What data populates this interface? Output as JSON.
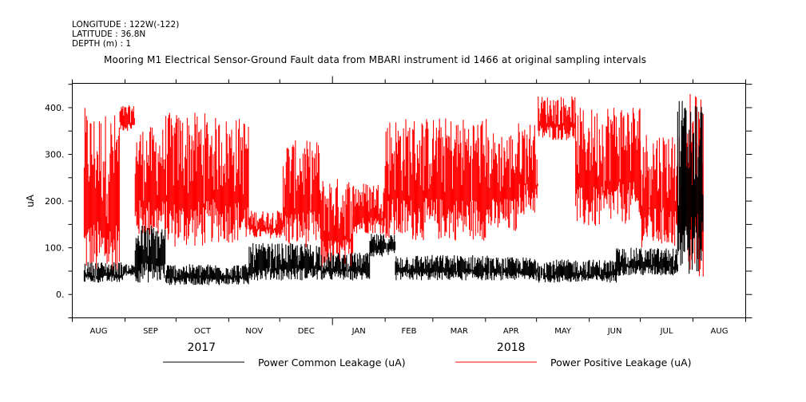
{
  "header": {
    "longitude": "LONGITUDE : 122W(-122)",
    "latitude": "LATITUDE : 36.8N",
    "depth": "DEPTH (m) : 1"
  },
  "chart_data": {
    "type": "line",
    "title": "Mooring M1 Electrical Sensor-Ground Fault data from MBARI instrument id 1466 at original sampling intervals",
    "xlabel": "",
    "ylabel": "uA",
    "ylim": [
      -50,
      452
    ],
    "yticks": [
      0,
      100,
      200,
      300,
      400
    ],
    "ytick_labels": [
      "0.",
      "100.",
      "200.",
      "300.",
      "400."
    ],
    "x_unit": "days since 2017-08-01",
    "xlim": [
      0,
      396
    ],
    "month_boundaries": [
      0,
      31,
      61,
      92,
      122,
      153,
      184,
      212,
      243,
      273,
      304,
      334,
      365,
      396
    ],
    "month_labels": [
      "AUG",
      "SEP",
      "OCT",
      "NOV",
      "DEC",
      "JAN",
      "FEB",
      "MAR",
      "APR",
      "MAY",
      "JUN",
      "JUL",
      "AUG"
    ],
    "year_labels": [
      {
        "label": "2017",
        "day": 76
      },
      {
        "label": "2018",
        "day": 258
      }
    ],
    "legend_placement": "bottom",
    "grid": false,
    "colors": {
      "common": "#000000",
      "positive": "#ff0000"
    },
    "series": [
      {
        "name": "Power Positive Leakage (uA)",
        "color": "#ff0000",
        "envelope": [
          {
            "from": 7,
            "to": 11,
            "low": 40,
            "high": 400
          },
          {
            "from": 11,
            "to": 28,
            "low": 35,
            "high": 390
          },
          {
            "from": 28,
            "to": 37,
            "low": 350,
            "high": 405
          },
          {
            "from": 37,
            "to": 55,
            "low": 120,
            "high": 360
          },
          {
            "from": 55,
            "to": 82,
            "low": 100,
            "high": 390
          },
          {
            "from": 82,
            "to": 104,
            "low": 110,
            "high": 380
          },
          {
            "from": 104,
            "to": 124,
            "low": 120,
            "high": 180
          },
          {
            "from": 124,
            "to": 146,
            "low": 100,
            "high": 330
          },
          {
            "from": 146,
            "to": 165,
            "low": 50,
            "high": 250
          },
          {
            "from": 165,
            "to": 184,
            "low": 130,
            "high": 240
          },
          {
            "from": 184,
            "to": 244,
            "low": 115,
            "high": 380
          },
          {
            "from": 244,
            "to": 262,
            "low": 130,
            "high": 350
          },
          {
            "from": 262,
            "to": 274,
            "low": 170,
            "high": 370
          },
          {
            "from": 274,
            "to": 296,
            "low": 330,
            "high": 425
          },
          {
            "from": 296,
            "to": 314,
            "low": 140,
            "high": 400
          },
          {
            "from": 314,
            "to": 334,
            "low": 150,
            "high": 410
          },
          {
            "from": 334,
            "to": 362,
            "low": 100,
            "high": 350
          },
          {
            "from": 362,
            "to": 371,
            "low": 30,
            "high": 430
          }
        ]
      },
      {
        "name": "Power Common Leakage (uA)",
        "color": "#000000",
        "envelope": [
          {
            "from": 7,
            "to": 30,
            "low": 25,
            "high": 70
          },
          {
            "from": 30,
            "to": 37,
            "low": 40,
            "high": 65
          },
          {
            "from": 37,
            "to": 55,
            "low": 25,
            "high": 150
          },
          {
            "from": 55,
            "to": 104,
            "low": 20,
            "high": 65
          },
          {
            "from": 104,
            "to": 146,
            "low": 30,
            "high": 110
          },
          {
            "from": 146,
            "to": 175,
            "low": 30,
            "high": 90
          },
          {
            "from": 175,
            "to": 190,
            "low": 80,
            "high": 130
          },
          {
            "from": 190,
            "to": 244,
            "low": 30,
            "high": 85
          },
          {
            "from": 244,
            "to": 274,
            "low": 30,
            "high": 80
          },
          {
            "from": 274,
            "to": 320,
            "low": 25,
            "high": 75
          },
          {
            "from": 320,
            "to": 356,
            "low": 40,
            "high": 100
          },
          {
            "from": 356,
            "to": 371,
            "low": 40,
            "high": 420
          }
        ]
      }
    ]
  }
}
